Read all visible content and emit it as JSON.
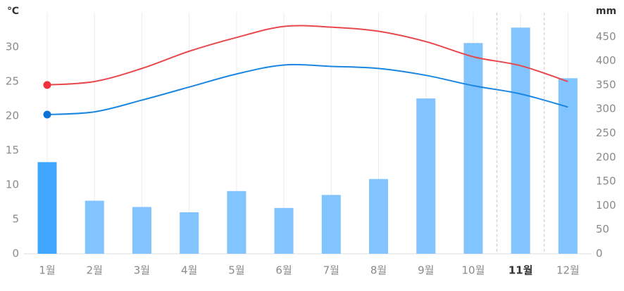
{
  "chart_data": {
    "type": "bar-line",
    "y_unit": "℃",
    "y2_unit": "mm",
    "categories": [
      "1월",
      "2월",
      "3월",
      "4월",
      "5월",
      "6월",
      "7월",
      "8월",
      "9월",
      "10월",
      "11월",
      "12월"
    ],
    "ylim": [
      0,
      35
    ],
    "yticks": [
      0,
      5,
      10,
      15,
      20,
      25,
      30
    ],
    "y2lim": [
      0,
      500
    ],
    "y2ticks": [
      0,
      50,
      100,
      150,
      200,
      250,
      300,
      350,
      400,
      450
    ],
    "grid": true,
    "highlight": 10,
    "active": 0,
    "series": [
      {
        "kind": "bar",
        "axis": "y2",
        "color": "#82c4ff",
        "active_color": "#3fa7ff",
        "values": [
          190,
          110,
          97,
          86,
          130,
          95,
          122,
          155,
          322,
          437,
          469,
          364
        ]
      },
      {
        "kind": "line",
        "color": "#e8484c",
        "marker_color": "#f0303a",
        "values": [
          24.5,
          25.0,
          26.9,
          29.4,
          31.4,
          33.0,
          32.9,
          32.3,
          30.8,
          28.6,
          27.3,
          25.0
        ]
      },
      {
        "kind": "line",
        "color": "#1a86e0",
        "marker_color": "#0b72d6",
        "values": [
          20.2,
          20.6,
          22.3,
          24.2,
          26.1,
          27.4,
          27.2,
          26.9,
          25.9,
          24.4,
          23.2,
          21.3
        ]
      }
    ]
  }
}
